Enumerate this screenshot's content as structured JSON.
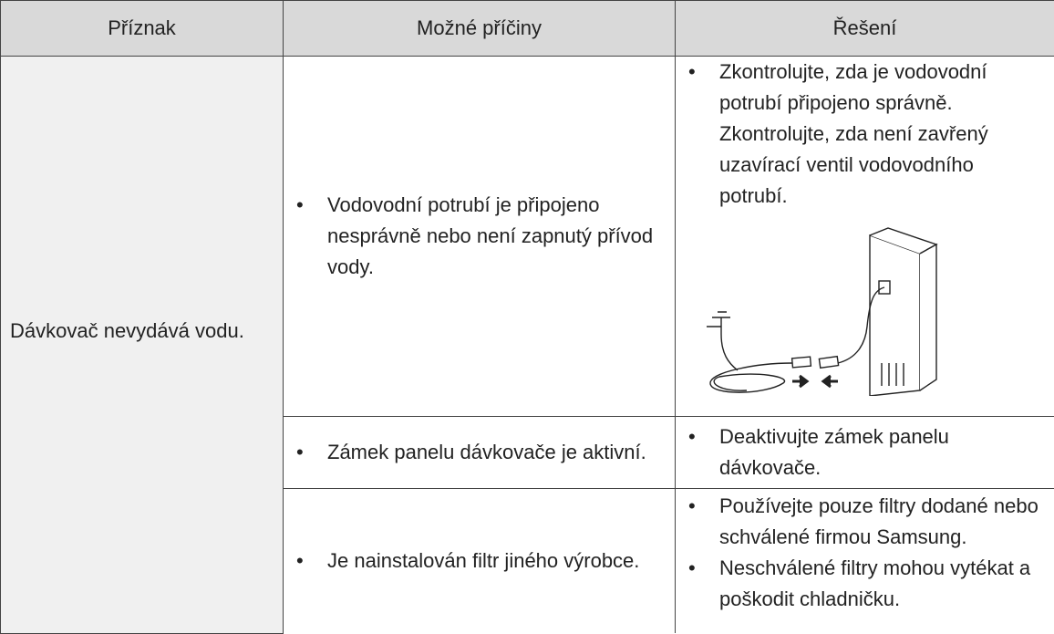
{
  "table": {
    "header": [
      "Příznak",
      "Možné příčiny",
      "Řešení"
    ],
    "symptom": "Dávkovač nevydává vodu.",
    "rows": [
      {
        "causes": [
          "Vodovodní potrubí je připojeno nesprávně nebo není zapnutý přívod vody."
        ],
        "solutions": [
          "Zkontrolujte, zda je vodovodní potrubí připojeno správně. Zkontrolujte, zda není zavřený uzavírací ventil vodovodního potrubí."
        ]
      },
      {
        "causes": [
          "Zámek panelu dávkovače je aktivní."
        ],
        "solutions": [
          "Deaktivujte zámek panelu dávkovače."
        ]
      },
      {
        "causes": [
          "Je nainstalován filtr jiného výrobce."
        ],
        "solutions": [
          "Používejte pouze filtry dodané nebo schválené firmou Samsung.",
          "Neschválené filtry mohou vytékat a poškodit chladničku."
        ]
      }
    ]
  }
}
